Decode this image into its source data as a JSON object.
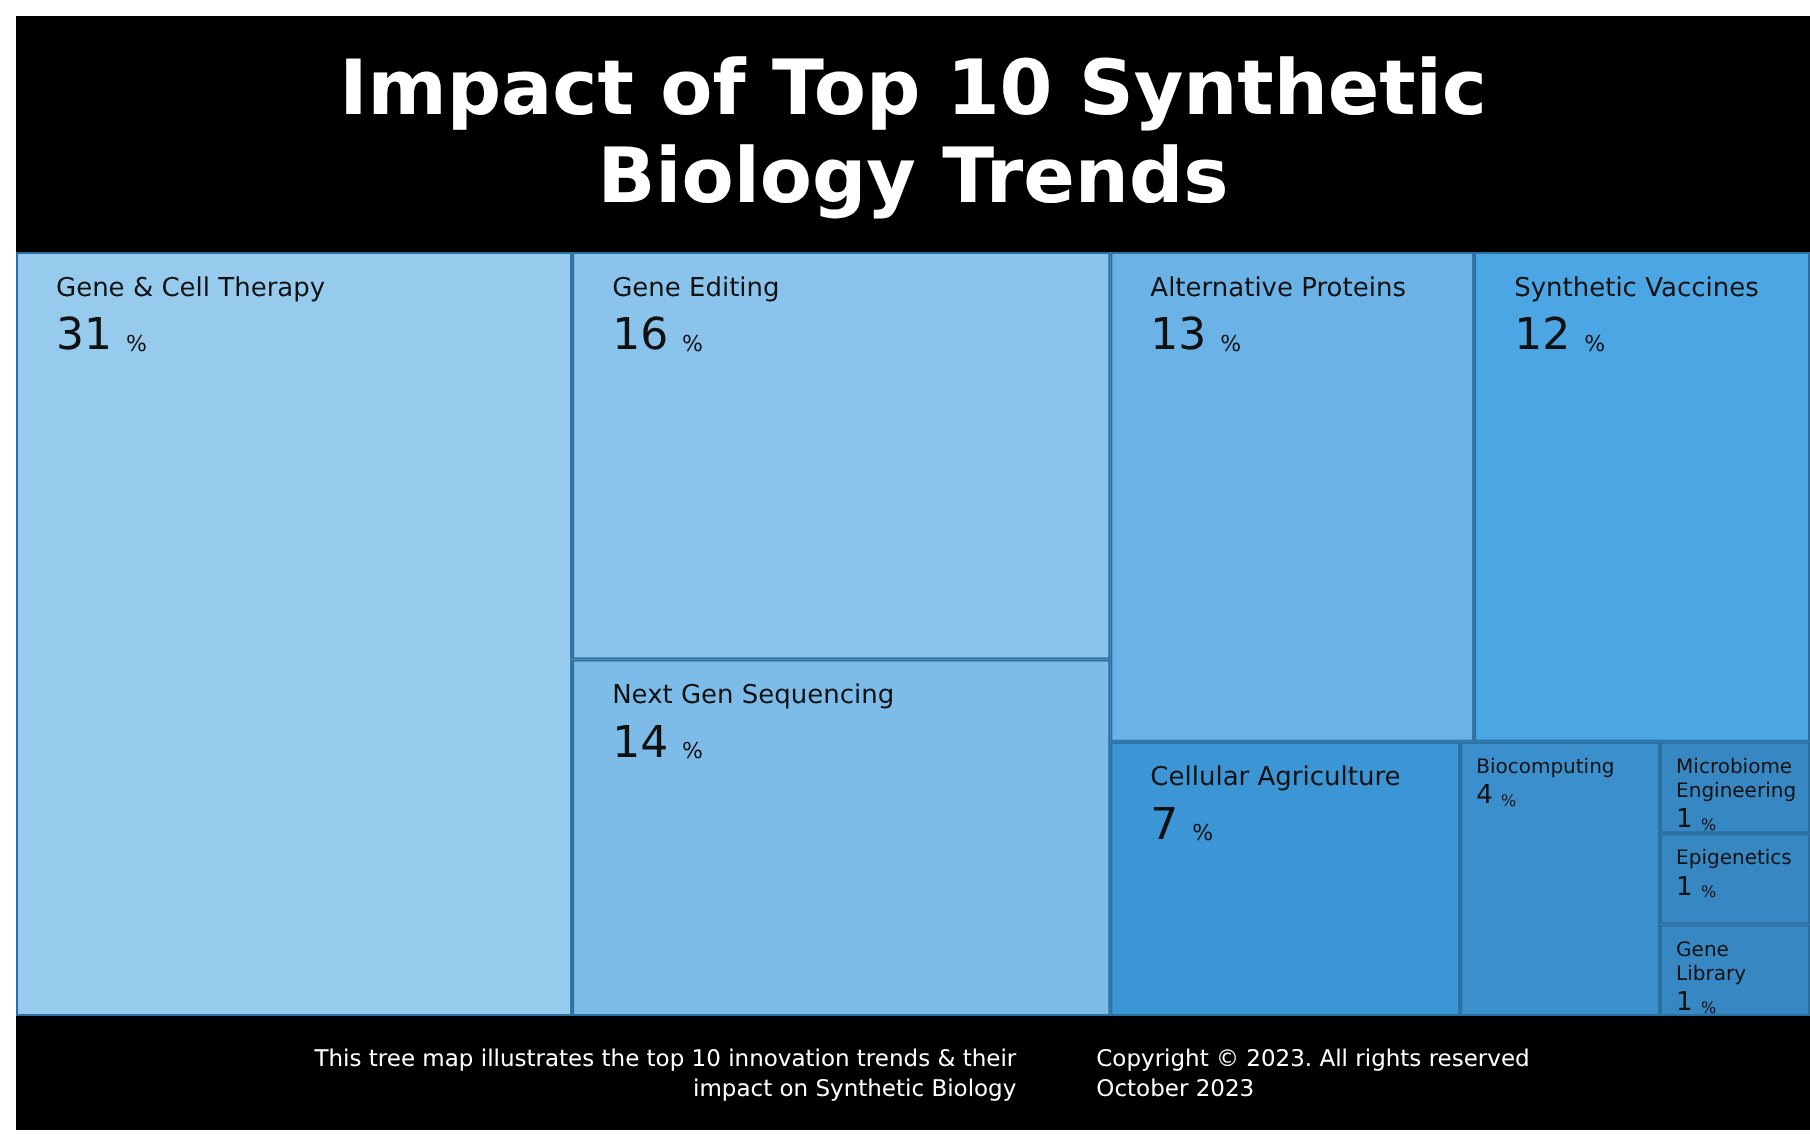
{
  "chart_data": {
    "type": "other",
    "title": "Impact of Top 10 Synthetic Biology Trends",
    "categories": [
      "Gene & Cell Therapy",
      "Gene Editing",
      "Next Gen Sequencing",
      "Alternative Proteins",
      "Synthetic Vaccines",
      "Cellular Agriculture",
      "Biocomputing",
      "Microbiome Engineering",
      "Epigenetics",
      "Gene Library"
    ],
    "values": [
      31,
      16,
      14,
      13,
      12,
      7,
      4,
      1,
      1,
      1
    ],
    "value_labels": [
      "31 %",
      "16 %",
      "14 %",
      "13 %",
      "12 %",
      "7 %",
      "4 %",
      "1 %",
      "1 %",
      "1 %"
    ],
    "colors": [
      "#97cbee",
      "#8ac4ec",
      "#7dbce9",
      "#6bb3e6",
      "#4ba6e3",
      "#3c96d5",
      "#3a8fcc",
      "#3687c2",
      "#3687c2",
      "#3687c2"
    ],
    "annotations": [
      "This tree map illustrates the top 10 innovation trends & their impact on Synthetic Biology",
      "Copyright © 2023. All rights reserved",
      "October 2023"
    ]
  }
}
